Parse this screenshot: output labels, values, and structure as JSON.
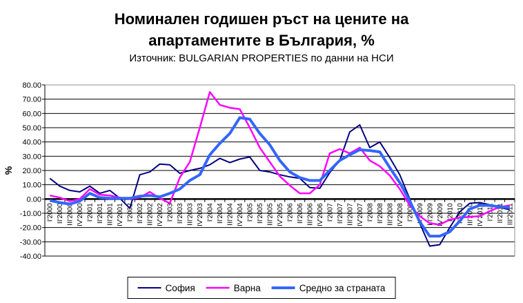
{
  "header": {
    "title_line1": "Номинален годишен ръст на цените на",
    "title_line2": "апартаментите в България, %",
    "subtitle": "Източник: BULGARIAN PROPERTIES по данни на НСИ"
  },
  "chart_data": {
    "type": "line",
    "title": "Номинален годишен ръст на цените на апартаментите в България, %",
    "subtitle": "Източник: BULGARIAN PROPERTIES по данни на НСИ",
    "xlabel": "",
    "ylabel": "%",
    "ylim": [
      -40,
      80
    ],
    "ytick_step": 10,
    "y_tick_labels": [
      "80.00",
      "70.00",
      "60.00",
      "50.00",
      "40.00",
      "30.00",
      "20.00",
      "10.00",
      "0.00",
      "-10.00",
      "-20.00",
      "-30.00",
      "-40.00"
    ],
    "grid": true,
    "legend_position": "bottom",
    "categories": [
      "I'2000",
      "II'2000",
      "III'2000",
      "IV'2000",
      "I'2001",
      "II'2001",
      "III'2001",
      "IV'2001",
      "I'2002",
      "II'2002",
      "III'2002",
      "IV'2002",
      "I'2003",
      "II'2003",
      "III'2003",
      "IV'2003",
      "I'2004",
      "II'2004",
      "III'2004",
      "IV'2004",
      "I'2005",
      "II'2005",
      "III'2005",
      "IV'2005",
      "I'2006",
      "II'2006",
      "III'2006",
      "IV'2006",
      "I'2007",
      "II'2007",
      "III'2007",
      "IV'2007",
      "I'2008",
      "II'2008",
      "III'2008",
      "IV'2008",
      "I'2009",
      "II'2009",
      "III'2009",
      "IV'2009",
      "I'2010",
      "II'2010",
      "III'2010",
      "IV'2010",
      "I'2011",
      "II'2011",
      "III'2011"
    ],
    "series": [
      {
        "name": "София",
        "color": "#000080",
        "stroke_width": 2,
        "values": [
          14.5,
          9,
          6,
          5,
          9,
          4,
          6,
          0.5,
          -6.5,
          17,
          19,
          24.5,
          24,
          18,
          20,
          21.5,
          24,
          28.5,
          25.5,
          28,
          29.5,
          20,
          19,
          17,
          15.5,
          14.5,
          8,
          7.5,
          18.5,
          27,
          47,
          52,
          36,
          40,
          29,
          17,
          0,
          -17,
          -33,
          -32,
          -20,
          -9,
          -3,
          -2.5,
          -4,
          -6,
          -7.5
        ]
      },
      {
        "name": "Варна",
        "color": "#FF00FF",
        "stroke_width": 2.5,
        "values": [
          2.5,
          1,
          -1.5,
          0,
          7,
          3,
          2.5,
          1,
          0,
          1,
          5,
          0.5,
          -3,
          15,
          26,
          50,
          75,
          66,
          64,
          63,
          50,
          36,
          26,
          16,
          9.5,
          4,
          4,
          10,
          32,
          35,
          32,
          36,
          27,
          23,
          16.5,
          7,
          -4.5,
          -12,
          -17,
          -18,
          -14.5,
          -13,
          -12.5,
          -12,
          -8.5,
          -5.5,
          -4.5
        ]
      },
      {
        "name": "Средно за страната",
        "color": "#3366FF",
        "stroke_width": 4,
        "values": [
          -1,
          -2.5,
          -3.5,
          -1.5,
          4,
          1,
          0.5,
          0.5,
          0.5,
          2,
          2.5,
          1.5,
          4,
          7,
          13,
          17,
          31,
          39,
          46,
          57,
          56,
          46,
          38,
          27,
          19,
          15,
          13,
          13,
          20,
          27,
          31,
          34.5,
          34,
          33,
          22,
          11.5,
          -1.5,
          -16,
          -26,
          -26,
          -23,
          -15.5,
          -7,
          -4.5,
          -4.5,
          -5.5,
          -6
        ]
      }
    ]
  }
}
